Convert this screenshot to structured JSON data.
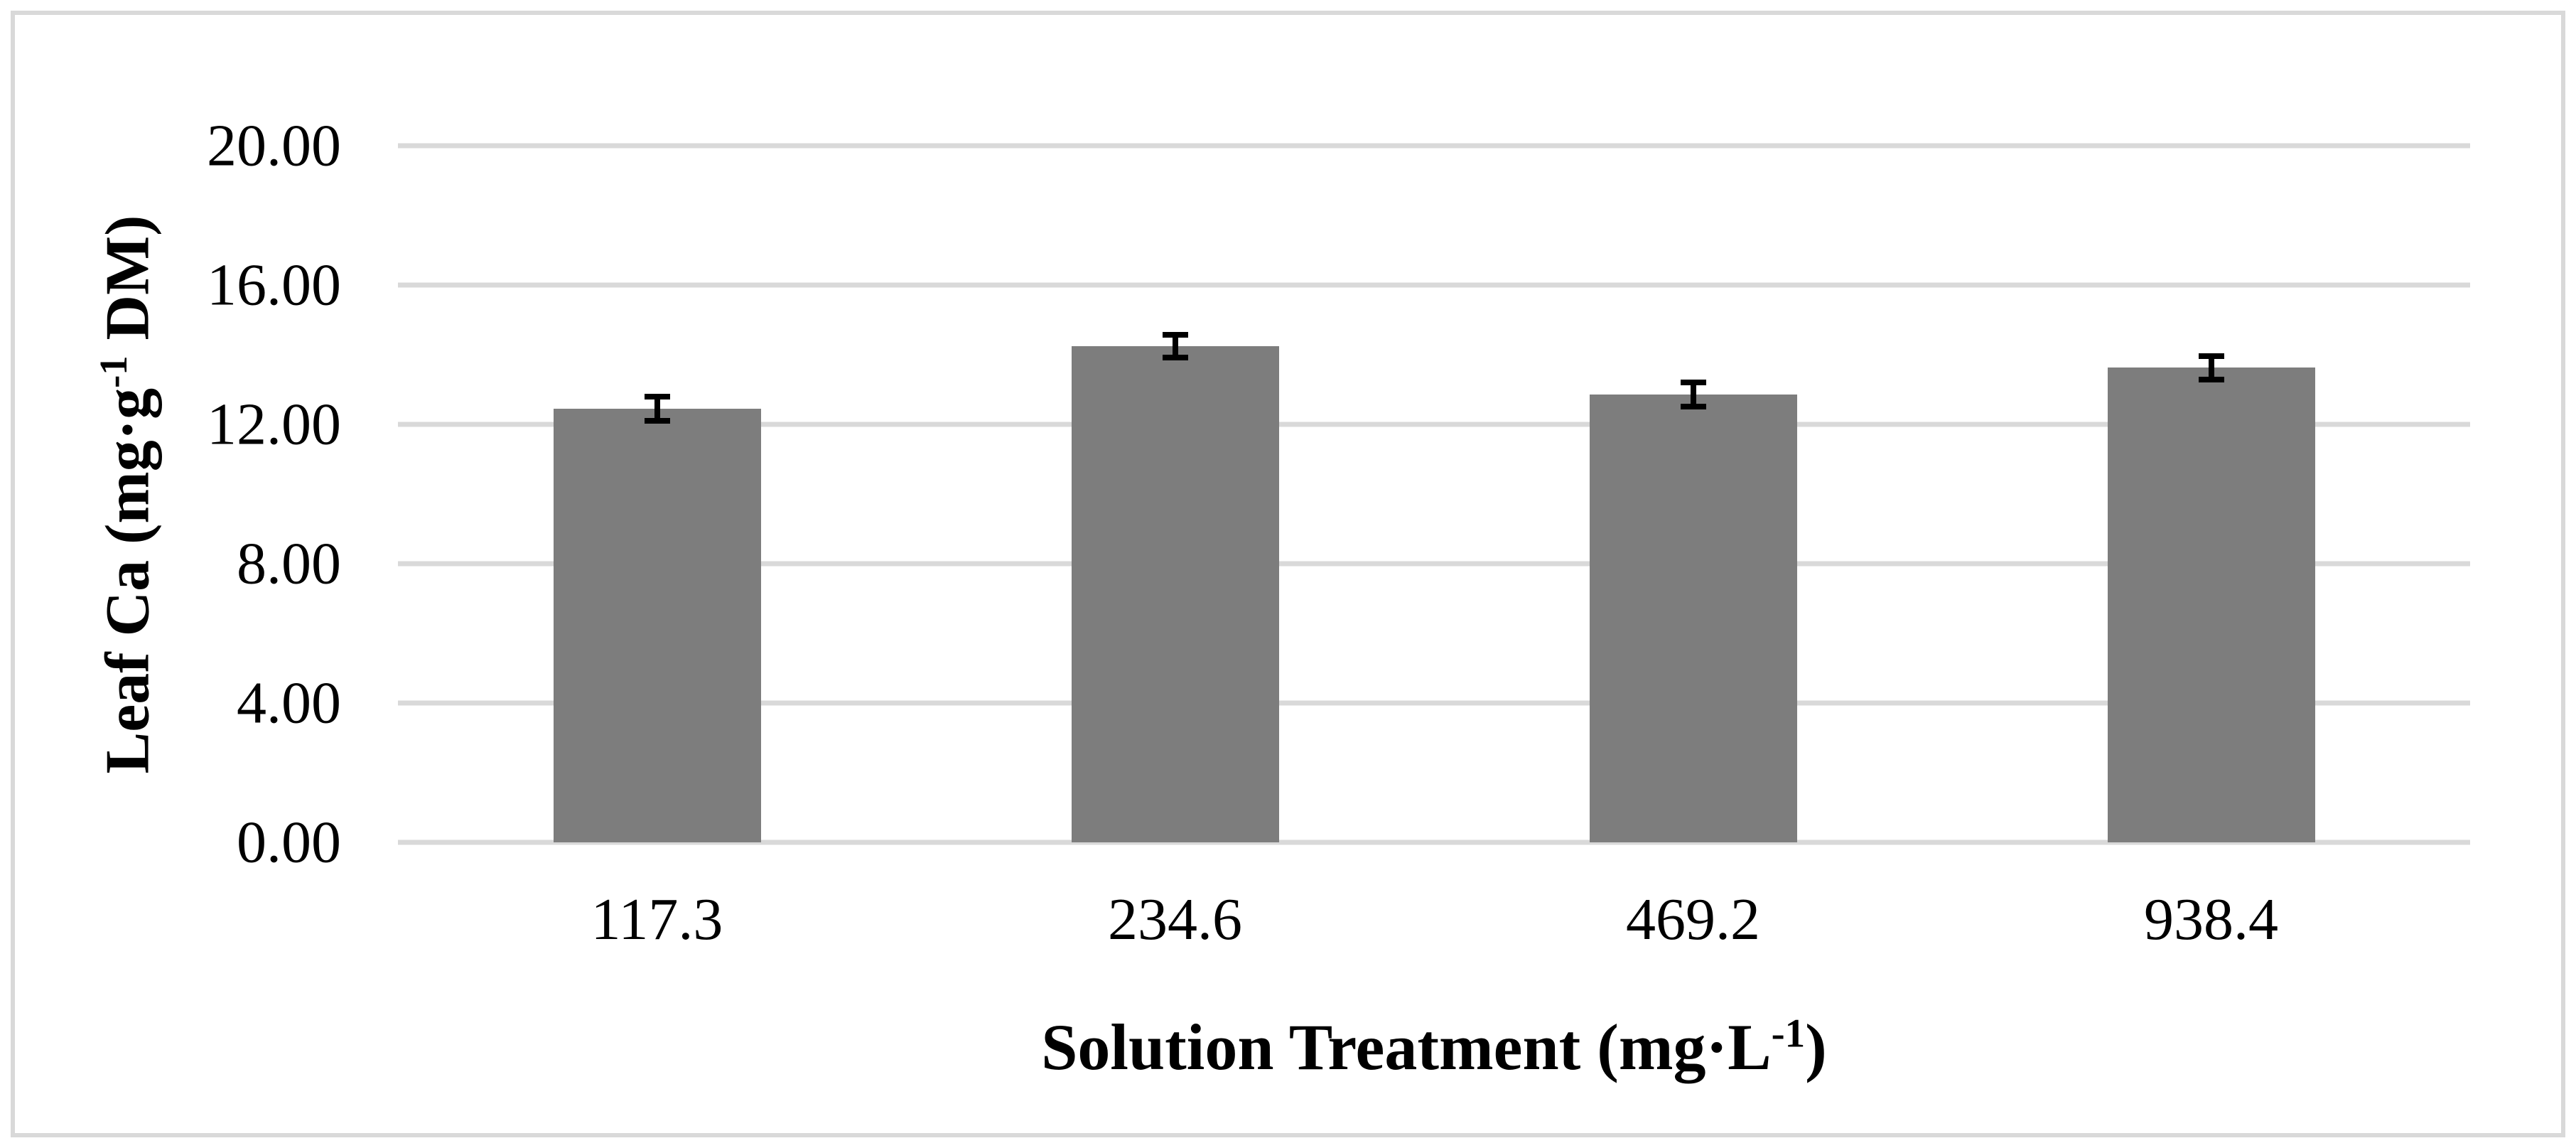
{
  "figure": {
    "background_color": "#ffffff",
    "border_color": "#d9d9d9"
  },
  "chart_data": {
    "type": "bar",
    "title": "",
    "categories": [
      "117.3",
      "234.6",
      "469.2",
      "938.4"
    ],
    "values": [
      12.45,
      14.24,
      12.86,
      13.63
    ],
    "errors": [
      0.43,
      0.41,
      0.43,
      0.42
    ],
    "yticks": [
      "0.00",
      "4.00",
      "8.00",
      "12.00",
      "16.00",
      "20.00"
    ],
    "ylim": [
      0,
      20
    ],
    "grid": true,
    "legend_position": "none",
    "bar_color": "#7d7d7d",
    "gridline_color": "#d9d9d9",
    "error_bar_color": "#000000",
    "xlabel": {
      "pre": "Solution Treatment (mg·L",
      "sup": "-1",
      "post": ")"
    },
    "ylabel": {
      "pre": "Leaf Ca (mg·g",
      "sup": "-1",
      "post": " DM)"
    }
  }
}
